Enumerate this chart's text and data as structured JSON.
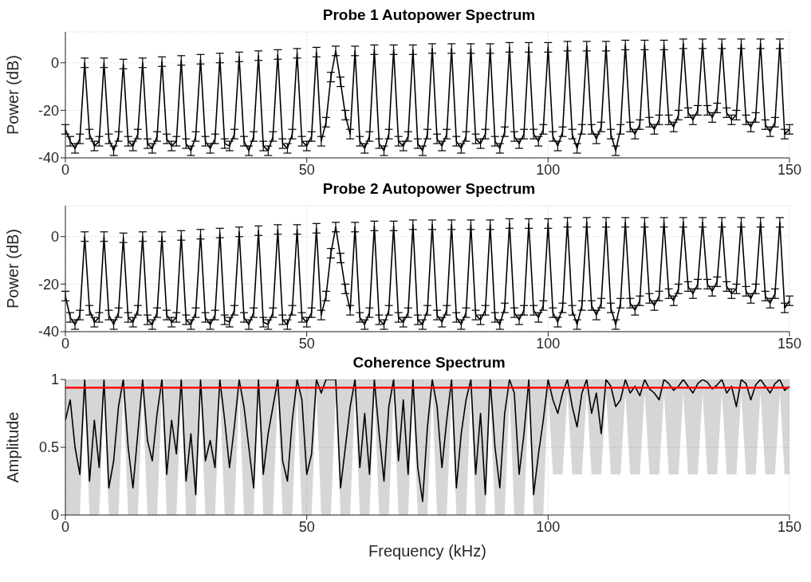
{
  "chart_data": [
    {
      "type": "line",
      "title": "Probe 1 Autopower Spectrum",
      "ylabel": "Power (dB)",
      "xlim": [
        0,
        150
      ],
      "xticks": [
        0,
        50,
        100,
        150
      ],
      "ylim": [
        -40,
        13
      ],
      "yticks": [
        -40,
        -20,
        0
      ],
      "grid": true,
      "x": [
        0,
        1,
        2,
        3,
        4,
        5,
        6,
        7,
        8,
        9,
        10,
        11,
        12,
        13,
        14,
        15,
        16,
        17,
        18,
        19,
        20,
        21,
        22,
        23,
        24,
        25,
        26,
        27,
        28,
        29,
        30,
        31,
        32,
        33,
        34,
        35,
        36,
        37,
        38,
        39,
        40,
        41,
        42,
        43,
        44,
        45,
        46,
        47,
        48,
        49,
        50,
        51,
        52,
        53,
        54,
        55,
        56,
        57,
        58,
        59,
        60,
        61,
        62,
        63,
        64,
        65,
        66,
        67,
        68,
        69,
        70,
        71,
        72,
        73,
        74,
        75,
        76,
        77,
        78,
        79,
        80,
        81,
        82,
        83,
        84,
        85,
        86,
        87,
        88,
        89,
        90,
        91,
        92,
        93,
        94,
        95,
        96,
        97,
        98,
        99,
        100,
        101,
        102,
        103,
        104,
        105,
        106,
        107,
        108,
        109,
        110,
        111,
        112,
        113,
        114,
        115,
        116,
        117,
        118,
        119,
        120,
        121,
        122,
        123,
        124,
        125,
        126,
        127,
        128,
        129,
        130,
        131,
        132,
        133,
        134,
        135,
        136,
        137,
        138,
        139,
        140,
        141,
        142,
        143,
        144,
        145,
        146,
        147,
        148,
        149,
        150
      ],
      "series": [
        {
          "color": "#000000",
          "values": [
            -28,
            -33,
            -36,
            -32,
            0,
            -30,
            -35,
            -33,
            0,
            -32,
            -37,
            -31,
            -0.5,
            -33,
            -35,
            -30,
            0,
            -34,
            -36,
            -31,
            0.5,
            -32,
            -35,
            -33,
            1,
            -34,
            -37,
            -31,
            1.5,
            -33,
            -36,
            -32,
            2,
            -34,
            -35,
            -30,
            2.5,
            -33,
            -37,
            -31,
            3,
            -35,
            -37,
            -31,
            3.5,
            -34,
            -36,
            -30,
            4,
            -33,
            -35,
            -31,
            4.5,
            -33,
            -25,
            -6,
            5,
            -8,
            -22,
            -30,
            5,
            -33,
            -36,
            -31,
            5.5,
            -34,
            -37,
            -30,
            5.5,
            -33,
            -35,
            -31,
            5.5,
            -34,
            -37,
            -30,
            6,
            -32,
            -35,
            -30,
            6,
            -33,
            -36,
            -31,
            6,
            -32,
            -34,
            -30,
            6,
            -33,
            -36,
            -29,
            6.5,
            -31,
            -34,
            -30,
            6.5,
            -30,
            -33,
            -28,
            6.5,
            -31,
            -35,
            -29,
            7,
            -30,
            -36,
            -28,
            7,
            -28,
            -32,
            -27,
            7,
            -30,
            -37,
            -28,
            7.5,
            -27,
            -30,
            -26,
            7.5,
            -25,
            -28,
            -24,
            7.5,
            -24,
            -27,
            -22,
            8,
            -21,
            -24,
            -20,
            8,
            -20,
            -23,
            -19,
            8,
            -21,
            -24,
            -22,
            8,
            -24,
            -27,
            -23,
            8,
            -26,
            -29,
            -25,
            8,
            -30,
            -28
          ],
          "errors": [
            2,
            2,
            2,
            2,
            2,
            2,
            2,
            2,
            2,
            2,
            2,
            2,
            2,
            2,
            2,
            2,
            2,
            2,
            2,
            2,
            2,
            2,
            2,
            2,
            2,
            2,
            2,
            2,
            2,
            2,
            2,
            2,
            2,
            2,
            2,
            2,
            2,
            2,
            2,
            2,
            2,
            2,
            2,
            2,
            2,
            2,
            2,
            2,
            2,
            2,
            2,
            2,
            2,
            2,
            2,
            2,
            2,
            2,
            2,
            2,
            2,
            2,
            2,
            2,
            2,
            2,
            2,
            2,
            2,
            2,
            2,
            2,
            2,
            2,
            2,
            2,
            2,
            2,
            2,
            2,
            2,
            2,
            2,
            2,
            2,
            2,
            2,
            2,
            2,
            2,
            2,
            2,
            2,
            2,
            2,
            2,
            2,
            2,
            2,
            2,
            2,
            2,
            2,
            2,
            2,
            2,
            2,
            2,
            2,
            2,
            2,
            2,
            2,
            2,
            2,
            2,
            2,
            2,
            2,
            2,
            2,
            2,
            2,
            2,
            2,
            2,
            2,
            2,
            2,
            2,
            2,
            2,
            2,
            2,
            2,
            2,
            2,
            2,
            2,
            2,
            2,
            2,
            2,
            2,
            2,
            2,
            2,
            2,
            2,
            2,
            2
          ]
        }
      ]
    },
    {
      "type": "line",
      "title": "Probe 2 Autopower Spectrum",
      "ylabel": "Power (dB)",
      "xlim": [
        0,
        150
      ],
      "xticks": [
        0,
        50,
        100,
        150
      ],
      "ylim": [
        -40,
        13
      ],
      "yticks": [
        -40,
        -20,
        0
      ],
      "grid": true,
      "x": [
        0,
        1,
        2,
        3,
        4,
        5,
        6,
        7,
        8,
        9,
        10,
        11,
        12,
        13,
        14,
        15,
        16,
        17,
        18,
        19,
        20,
        21,
        22,
        23,
        24,
        25,
        26,
        27,
        28,
        29,
        30,
        31,
        32,
        33,
        34,
        35,
        36,
        37,
        38,
        39,
        40,
        41,
        42,
        43,
        44,
        45,
        46,
        47,
        48,
        49,
        50,
        51,
        52,
        53,
        54,
        55,
        56,
        57,
        58,
        59,
        60,
        61,
        62,
        63,
        64,
        65,
        66,
        67,
        68,
        69,
        70,
        71,
        72,
        73,
        74,
        75,
        76,
        77,
        78,
        79,
        80,
        81,
        82,
        83,
        84,
        85,
        86,
        87,
        88,
        89,
        90,
        91,
        92,
        93,
        94,
        95,
        96,
        97,
        98,
        99,
        100,
        101,
        102,
        103,
        104,
        105,
        106,
        107,
        108,
        109,
        110,
        111,
        112,
        113,
        114,
        115,
        116,
        117,
        118,
        119,
        120,
        121,
        122,
        123,
        124,
        125,
        126,
        127,
        128,
        129,
        130,
        131,
        132,
        133,
        134,
        135,
        136,
        137,
        138,
        139,
        140,
        141,
        142,
        143,
        144,
        145,
        146,
        147,
        148,
        149,
        150
      ],
      "series": [
        {
          "color": "#000000",
          "values": [
            -25,
            -34,
            -37,
            -33,
            0,
            -31,
            -36,
            -34,
            0,
            -33,
            -37,
            -32,
            -0.5,
            -34,
            -36,
            -31,
            0,
            -35,
            -37,
            -32,
            0,
            -33,
            -36,
            -34,
            0.5,
            -35,
            -37,
            -32,
            1,
            -34,
            -37,
            -33,
            1.5,
            -35,
            -36,
            -31,
            2,
            -34,
            -37,
            -32,
            2.5,
            -36,
            -37,
            -32,
            3,
            -35,
            -37,
            -31,
            3,
            -34,
            -36,
            -32,
            3.5,
            -33,
            -25,
            -7,
            4,
            -9,
            -22,
            -31,
            4,
            -34,
            -37,
            -32,
            4.5,
            -35,
            -37,
            -31,
            4.5,
            -34,
            -36,
            -32,
            5,
            -35,
            -37,
            -31,
            5,
            -33,
            -36,
            -31,
            5,
            -34,
            -37,
            -32,
            5,
            -33,
            -35,
            -31,
            5,
            -34,
            -37,
            -30,
            5.5,
            -32,
            -35,
            -31,
            5.5,
            -31,
            -34,
            -29,
            5.5,
            -32,
            -36,
            -30,
            6,
            -31,
            -37,
            -29,
            6,
            -29,
            -33,
            -28,
            6,
            -30,
            -37,
            -28,
            6,
            -28,
            -31,
            -27,
            6,
            -26,
            -29,
            -25,
            6,
            -24,
            -27,
            -22,
            6,
            -21,
            -24,
            -20,
            6,
            -20,
            -23,
            -19,
            6,
            -21,
            -24,
            -22,
            6,
            -23,
            -26,
            -22,
            6,
            -25,
            -28,
            -24,
            6,
            -30,
            -27
          ],
          "errors": [
            2,
            2,
            2,
            2,
            2,
            2,
            2,
            2,
            2,
            2,
            2,
            2,
            2,
            2,
            2,
            2,
            2,
            2,
            2,
            2,
            2,
            2,
            2,
            2,
            2,
            2,
            2,
            2,
            2,
            2,
            2,
            2,
            2,
            2,
            2,
            2,
            2,
            2,
            2,
            2,
            2,
            2,
            2,
            2,
            2,
            2,
            2,
            2,
            2,
            2,
            2,
            2,
            2,
            2,
            2,
            2,
            2,
            2,
            2,
            2,
            2,
            2,
            2,
            2,
            2,
            2,
            2,
            2,
            2,
            2,
            2,
            2,
            2,
            2,
            2,
            2,
            2,
            2,
            2,
            2,
            2,
            2,
            2,
            2,
            2,
            2,
            2,
            2,
            2,
            2,
            2,
            2,
            2,
            2,
            2,
            2,
            2,
            2,
            2,
            2,
            2,
            2,
            2,
            2,
            2,
            2,
            2,
            2,
            2,
            2,
            2,
            2,
            2,
            2,
            2,
            2,
            2,
            2,
            2,
            2,
            2,
            2,
            2,
            2,
            2,
            2,
            2,
            2,
            2,
            2,
            2,
            2,
            2,
            2,
            2,
            2,
            2,
            2,
            2,
            2,
            2,
            2,
            2,
            2,
            2,
            2,
            2,
            2,
            2,
            2,
            2
          ]
        }
      ]
    },
    {
      "type": "line",
      "title": "Coherence Spectrum",
      "xlabel": "Frequency (kHz)",
      "ylabel": "Amplitude",
      "xlim": [
        0,
        150
      ],
      "xticks": [
        0,
        50,
        100,
        150
      ],
      "ylim": [
        0,
        1
      ],
      "yticks": [
        0,
        0.5,
        1
      ],
      "grid": true,
      "ref_lines": [
        {
          "axis": "y",
          "value": 0.94,
          "color": "#ff0000"
        }
      ],
      "x": [
        0,
        1,
        2,
        3,
        4,
        5,
        6,
        7,
        8,
        9,
        10,
        11,
        12,
        13,
        14,
        15,
        16,
        17,
        18,
        19,
        20,
        21,
        22,
        23,
        24,
        25,
        26,
        27,
        28,
        29,
        30,
        31,
        32,
        33,
        34,
        35,
        36,
        37,
        38,
        39,
        40,
        41,
        42,
        43,
        44,
        45,
        46,
        47,
        48,
        49,
        50,
        51,
        52,
        53,
        54,
        55,
        56,
        57,
        58,
        59,
        60,
        61,
        62,
        63,
        64,
        65,
        66,
        67,
        68,
        69,
        70,
        71,
        72,
        73,
        74,
        75,
        76,
        77,
        78,
        79,
        80,
        81,
        82,
        83,
        84,
        85,
        86,
        87,
        88,
        89,
        90,
        91,
        92,
        93,
        94,
        95,
        96,
        97,
        98,
        99,
        100,
        101,
        102,
        103,
        104,
        105,
        106,
        107,
        108,
        109,
        110,
        111,
        112,
        113,
        114,
        115,
        116,
        117,
        118,
        119,
        120,
        121,
        122,
        123,
        124,
        125,
        126,
        127,
        128,
        129,
        130,
        131,
        132,
        133,
        134,
        135,
        136,
        137,
        138,
        139,
        140,
        141,
        142,
        143,
        144,
        145,
        146,
        147,
        148,
        149,
        150
      ],
      "series": [
        {
          "color": "#000000",
          "values": [
            0.7,
            0.85,
            0.5,
            0.3,
            1,
            0.25,
            0.7,
            0.35,
            1,
            0.2,
            0.4,
            0.8,
            1,
            0.5,
            0.2,
            0.6,
            1,
            0.55,
            0.4,
            0.75,
            1,
            0.3,
            0.7,
            0.45,
            1,
            0.25,
            0.6,
            0.15,
            1,
            0.4,
            0.55,
            0.35,
            1,
            0.7,
            0.35,
            0.65,
            1,
            0.8,
            0.5,
            0.2,
            1,
            0.3,
            0.6,
            0.8,
            1,
            0.4,
            0.25,
            0.7,
            1,
            0.85,
            0.3,
            0.45,
            1,
            0.9,
            1,
            1,
            1,
            0.2,
            0.5,
            0.8,
            1,
            0.35,
            0.75,
            0.3,
            1,
            0.6,
            0.25,
            0.8,
            1,
            0.4,
            0.85,
            0.3,
            1,
            0.35,
            0.1,
            0.65,
            1,
            0.8,
            0.35,
            0.7,
            1,
            0.2,
            0.6,
            0.85,
            1,
            0.3,
            0.75,
            0.15,
            1,
            0.5,
            0.2,
            0.75,
            1,
            0.9,
            0.3,
            0.6,
            1,
            0.15,
            0.45,
            0.7,
            1,
            0.85,
            0.75,
            0.9,
            1,
            0.8,
            0.65,
            0.9,
            1,
            0.75,
            0.9,
            0.6,
            1,
            0.95,
            0.8,
            0.85,
            1,
            0.9,
            0.95,
            0.88,
            1,
            0.93,
            0.9,
            0.85,
            1,
            0.97,
            0.92,
            0.95,
            1,
            0.95,
            0.9,
            0.97,
            1,
            0.98,
            0.93,
            0.96,
            1,
            0.9,
            0.95,
            0.8,
            1,
            0.97,
            0.85,
            0.96,
            1,
            0.95,
            0.9,
            0.97,
            1,
            0.92,
            0.95
          ],
          "lower": [
            0,
            0,
            0,
            0,
            0.9,
            0,
            0,
            0,
            0.9,
            0,
            0,
            0,
            0.9,
            0,
            0,
            0,
            0.9,
            0,
            0,
            0,
            0.9,
            0,
            0,
            0,
            0.9,
            0,
            0,
            0,
            0.9,
            0,
            0,
            0,
            0.9,
            0,
            0,
            0,
            0.9,
            0,
            0,
            0,
            0.9,
            0,
            0,
            0,
            0.9,
            0,
            0,
            0,
            0.9,
            0,
            0,
            0,
            0.9,
            0,
            0,
            0,
            0.9,
            0,
            0,
            0,
            0.9,
            0,
            0,
            0,
            0.9,
            0,
            0,
            0,
            0.9,
            0,
            0,
            0,
            0.9,
            0,
            0,
            0,
            0.9,
            0,
            0,
            0,
            0.9,
            0,
            0,
            0,
            0.9,
            0,
            0,
            0,
            0.9,
            0,
            0,
            0,
            0.9,
            0,
            0,
            0,
            0.9,
            0,
            0,
            0,
            0.9,
            0.3,
            0.3,
            0.3,
            0.9,
            0.3,
            0.3,
            0.3,
            0.9,
            0.3,
            0.3,
            0.3,
            0.9,
            0.3,
            0.3,
            0.3,
            0.9,
            0.3,
            0.3,
            0.3,
            0.9,
            0.3,
            0.3,
            0.3,
            0.9,
            0.3,
            0.3,
            0.3,
            0.9,
            0.3,
            0.3,
            0.3,
            0.9,
            0.3,
            0.3,
            0.3,
            0.9,
            0.3,
            0.3,
            0.3,
            0.9,
            0.3,
            0.3,
            0.3,
            0.9,
            0.3,
            0.3,
            0.3,
            0.9,
            0.3,
            0.3
          ],
          "upper": [
            1,
            1,
            1,
            1,
            1,
            1,
            1,
            1,
            1,
            1,
            1,
            1,
            1,
            1,
            1,
            1,
            1,
            1,
            1,
            1,
            1,
            1,
            1,
            1,
            1,
            1,
            1,
            1,
            1,
            1,
            1,
            1,
            1,
            1,
            1,
            1,
            1,
            1,
            1,
            1,
            1,
            1,
            1,
            1,
            1,
            1,
            1,
            1,
            1,
            1,
            1,
            1,
            1,
            1,
            1,
            1,
            1,
            1,
            1,
            1,
            1,
            1,
            1,
            1,
            1,
            1,
            1,
            1,
            1,
            1,
            1,
            1,
            1,
            1,
            1,
            1,
            1,
            1,
            1,
            1,
            1,
            1,
            1,
            1,
            1,
            1,
            1,
            1,
            1,
            1,
            1,
            1,
            1,
            1,
            1,
            1,
            1,
            1,
            1,
            1,
            1,
            1,
            1,
            1,
            1,
            1,
            1,
            1,
            1,
            1,
            1,
            1,
            1,
            1,
            1,
            1,
            1,
            1,
            1,
            1,
            1,
            1,
            1,
            1,
            1,
            1,
            1,
            1,
            1,
            1,
            1,
            1,
            1,
            1,
            1,
            1,
            1,
            1,
            1,
            1,
            1,
            1,
            1,
            1,
            1,
            1,
            1,
            1,
            1,
            1,
            1
          ]
        }
      ]
    }
  ]
}
